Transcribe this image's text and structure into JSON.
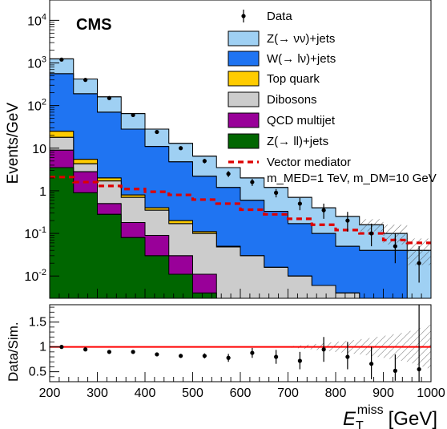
{
  "chart_data": [
    {
      "type": "area",
      "experiment_label": "CMS",
      "ylabel": "Events/GeV",
      "y_scale": "log",
      "ylim": [
        0.003,
        30000
      ],
      "y_tick_labels": [
        "10^{-2}",
        "10^{-1}",
        "1",
        "10",
        "10^{2}",
        "10^{3}",
        "10^{4}"
      ],
      "x_bin_edges": [
        200,
        250,
        300,
        350,
        400,
        450,
        500,
        550,
        600,
        650,
        700,
        750,
        800,
        850,
        900,
        950,
        1000
      ],
      "x_tick_labels": [
        "200",
        "300",
        "400",
        "500",
        "600",
        "700",
        "800",
        "900",
        "1000"
      ],
      "stack_series": [
        {
          "name": "Z(→ νν)+jets",
          "color": "#9fd0f3",
          "cumulative_values": [
            1250,
            420,
            160,
            65,
            28,
            13,
            6.5,
            3.5,
            2.0,
            1.2,
            0.7,
            0.4,
            0.25,
            0.16,
            0.1,
            0.04
          ]
        },
        {
          "name": "W(→ lν)+jets",
          "color": "#1f74f2",
          "cumulative_values": [
            560,
            190,
            70,
            28,
            11,
            4.8,
            2.2,
            1.2,
            0.6,
            0.33,
            0.17,
            0.1,
            0.05,
            0.04,
            0.04,
            0.003
          ]
        },
        {
          "name": "Top quark",
          "color": "#ffcc00",
          "cumulative_values": [
            25,
            5.5,
            2.0,
            0.8,
            0.4,
            0.2,
            0.11,
            0.05,
            0.03,
            0.016,
            0.01,
            0.006,
            0.004,
            0.003,
            0.003,
            0.003
          ]
        },
        {
          "name": "Dibosons",
          "color": "#cccccc",
          "cumulative_values": [
            18,
            4.3,
            1.7,
            0.7,
            0.35,
            0.17,
            0.1,
            0.048,
            0.03,
            0.016,
            0.01,
            0.006,
            0.004,
            0.003,
            0.003,
            0.003
          ]
        },
        {
          "name": "QCD multijet",
          "color": "#990099",
          "cumulative_values": [
            9,
            2.8,
            0.5,
            0.18,
            0.09,
            0.03,
            0.011,
            0.003,
            0.003,
            0.003,
            0.003,
            0.003,
            0.003,
            0.003,
            0.003,
            0.003
          ]
        },
        {
          "name": "Z(→ ll)+jets",
          "color": "#006600",
          "cumulative_values": [
            3.5,
            0.9,
            0.28,
            0.08,
            0.03,
            0.011,
            0.004,
            0.003,
            0.003,
            0.003,
            0.003,
            0.003,
            0.003,
            0.003,
            0.003,
            0.003
          ]
        }
      ],
      "data_series": {
        "name": "Data",
        "x": [
          225,
          275,
          325,
          375,
          425,
          475,
          525,
          575,
          625,
          675,
          725,
          775,
          825,
          875,
          925,
          975
        ],
        "values": [
          1200,
          400,
          150,
          60,
          24,
          10,
          5.0,
          2.5,
          1.6,
          0.9,
          0.5,
          0.35,
          0.2,
          0.1,
          0.05,
          0.02
        ],
        "err_low": [
          1130,
          380,
          142,
          56,
          22,
          9.2,
          4.4,
          2.1,
          1.3,
          0.7,
          0.35,
          0.22,
          0.11,
          0.05,
          0.02,
          0.007
        ],
        "err_high": [
          1270,
          420,
          158,
          64,
          26,
          10.8,
          5.6,
          2.9,
          1.9,
          1.1,
          0.68,
          0.5,
          0.32,
          0.17,
          0.1,
          0.05
        ]
      },
      "signal_series": {
        "name": "Vector mediator",
        "label_line2": "m_MED=1 TeV, m_DM=10 GeV",
        "color": "#dd0000",
        "values": [
          2.1,
          1.6,
          1.3,
          1.1,
          0.95,
          0.8,
          0.62,
          0.5,
          0.36,
          0.28,
          0.22,
          0.16,
          0.12,
          0.1,
          0.07,
          0.06
        ]
      },
      "legend_placement": "top-right"
    },
    {
      "type": "scatter",
      "ylabel": "Data/Sim.",
      "xlabel": "E_T^miss [GeV]",
      "ylim": [
        0.3,
        1.85
      ],
      "y_tick_labels": [
        "0.5",
        "1",
        "1.5"
      ],
      "xlim": [
        200,
        1000
      ],
      "x_tick_labels": [
        "200",
        "300",
        "400",
        "500",
        "600",
        "700",
        "800",
        "900",
        "1000"
      ],
      "reference_line": {
        "y": 1.0,
        "color": "#ff0000"
      },
      "ratio_points": {
        "x": [
          225,
          275,
          325,
          375,
          425,
          475,
          525,
          575,
          625,
          675,
          725,
          775,
          825,
          875,
          925,
          975
        ],
        "values": [
          1.0,
          0.95,
          0.9,
          0.9,
          0.85,
          0.82,
          0.82,
          0.78,
          0.88,
          0.8,
          0.72,
          0.95,
          0.8,
          0.66,
          0.52,
          0.55
        ],
        "err_low": [
          0.98,
          0.93,
          0.88,
          0.88,
          0.82,
          0.78,
          0.77,
          0.7,
          0.78,
          0.66,
          0.55,
          0.7,
          0.55,
          0.35,
          0.32,
          0.3
        ],
        "err_high": [
          1.02,
          0.97,
          0.92,
          0.92,
          0.88,
          0.86,
          0.87,
          0.86,
          0.98,
          0.94,
          0.9,
          1.2,
          1.1,
          1.0,
          0.85,
          1.85
        ]
      },
      "uncertainty_band": {
        "x": [
          700,
          750,
          800,
          850,
          900,
          950,
          1000
        ],
        "low": [
          0.99,
          0.95,
          0.9,
          0.85,
          0.78,
          0.7,
          0.55
        ],
        "high": [
          1.01,
          1.05,
          1.1,
          1.15,
          1.22,
          1.3,
          1.45
        ]
      }
    }
  ]
}
